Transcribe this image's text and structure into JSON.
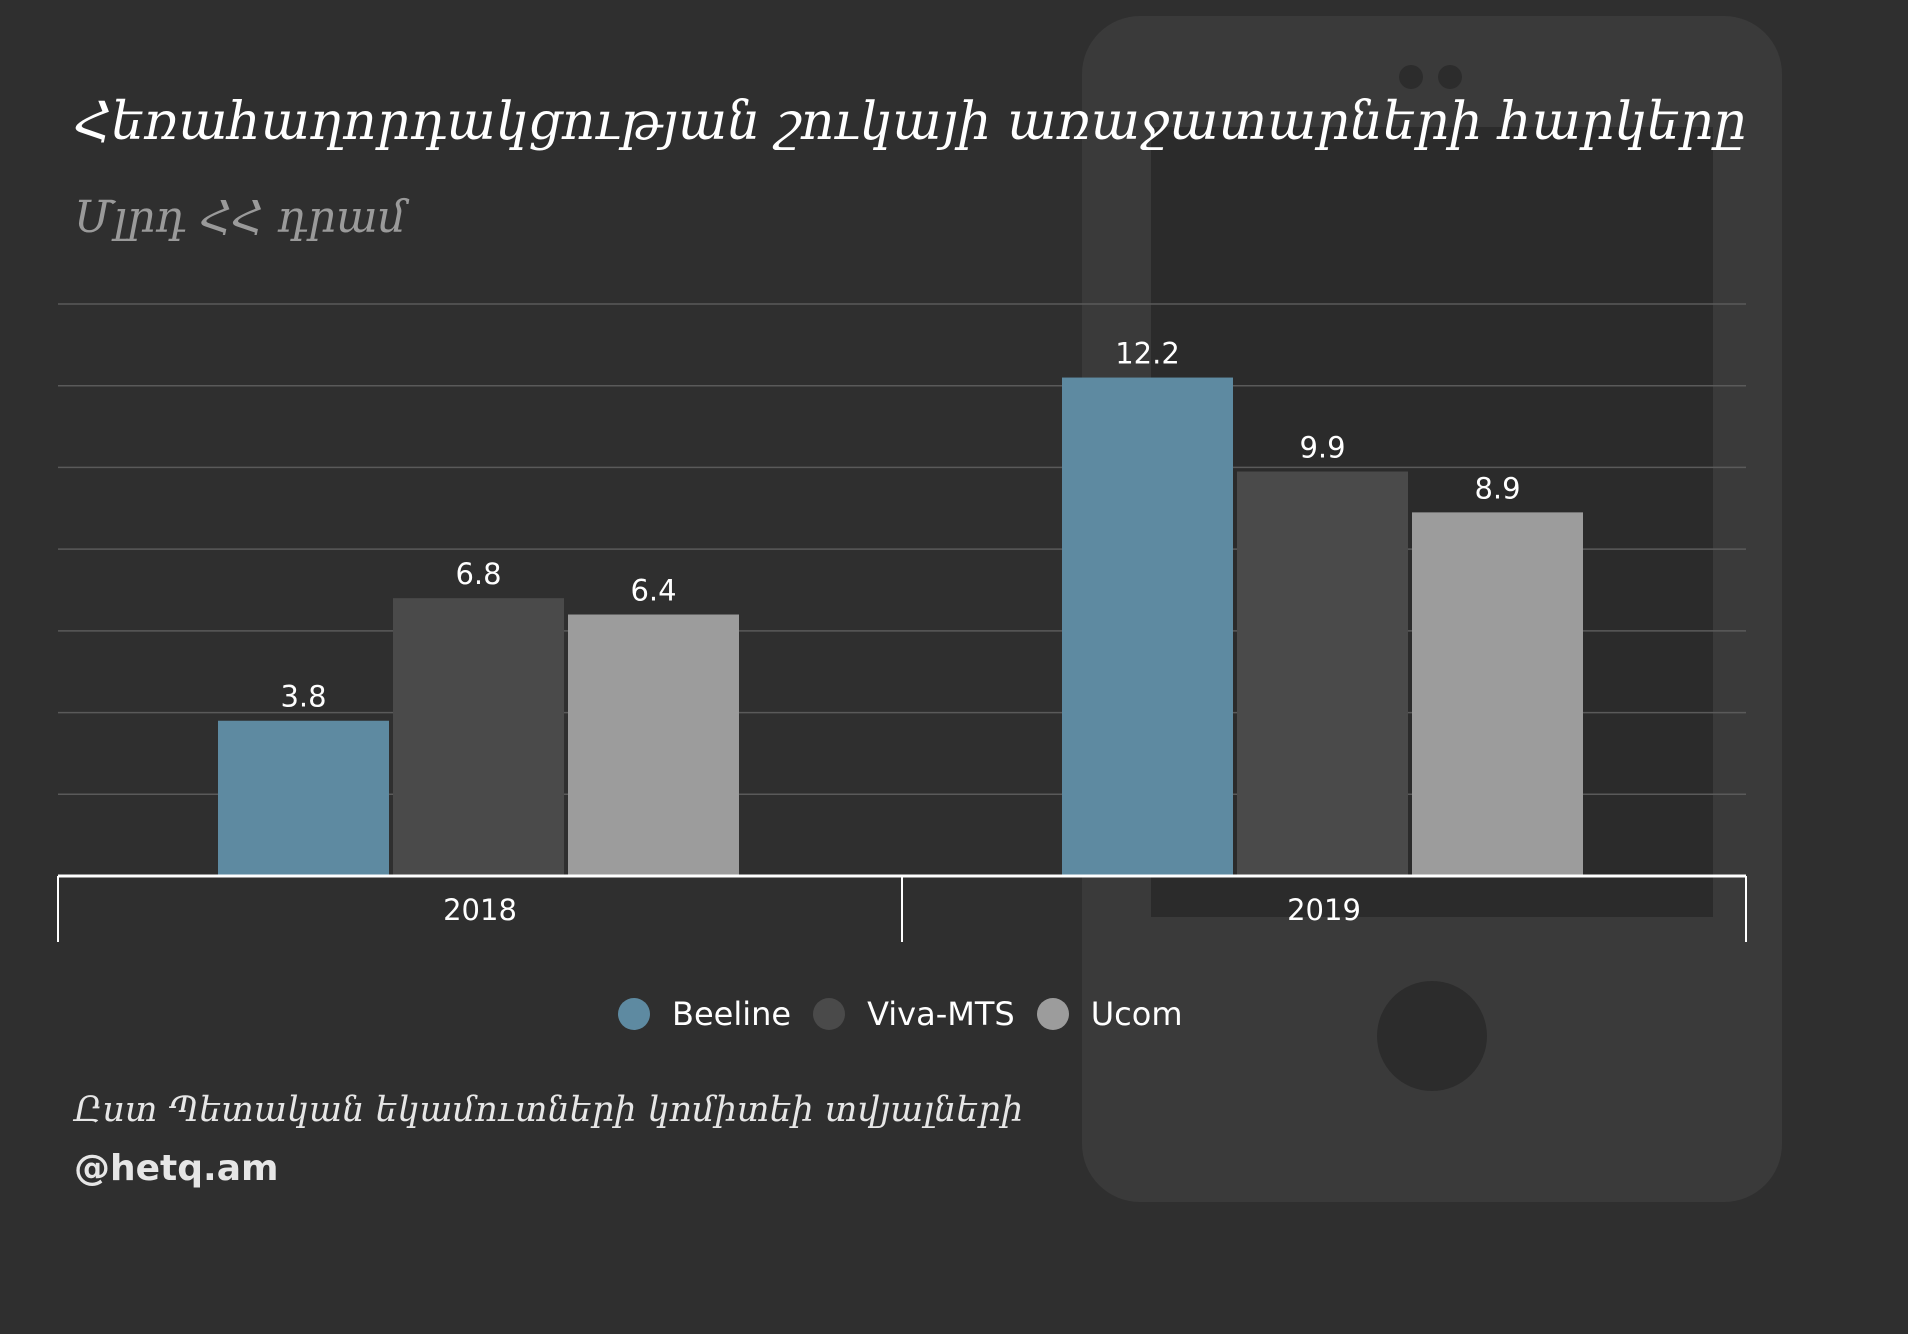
{
  "header": {
    "title": "Հեռահաղորդակցության շուկայի առաջատարների հարկերը",
    "subtitle": "Մլրդ ՀՀ դրամ"
  },
  "footer": {
    "source": "Ըստ Պետական եկամուտների կոմիտեի տվյալների",
    "handle": "@hetq.am"
  },
  "colors": {
    "background": "#2f2f2f",
    "phone_body": "#3a3a3a",
    "phone_screen": "#2b2b2b",
    "phone_button": "#2c2c2c",
    "gridline": "#5a5a5a",
    "axis": "#ffffff",
    "label": "#ffffff"
  },
  "icons": {
    "background": "smartphone-icon"
  },
  "chart_data": {
    "type": "bar",
    "title": "Հեռահաղորդակցության շուկայի առաջատարների հարկերը",
    "subtitle": "Մլրդ ՀՀ դրամ",
    "categories": [
      "2018",
      "2019"
    ],
    "series": [
      {
        "name": "Beeline",
        "color": "#5e8aa1",
        "values": [
          3.8,
          12.2
        ]
      },
      {
        "name": "Viva-MTS",
        "color": "#4a4a4a",
        "values": [
          6.8,
          9.9
        ]
      },
      {
        "name": "Ucom",
        "color": "#9c9c9c",
        "values": [
          6.4,
          8.9
        ]
      }
    ],
    "ylim": [
      0,
      14
    ],
    "y_gridline_step": 2,
    "grid": true,
    "y_axis_visible": false,
    "data_labels": true,
    "legend": "bottom-center"
  }
}
